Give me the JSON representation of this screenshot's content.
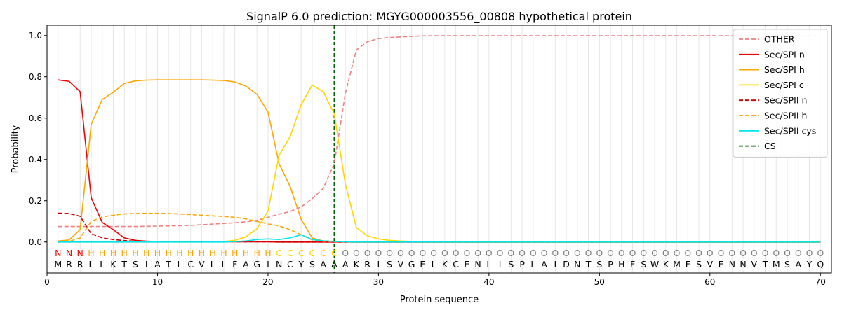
{
  "chart_data": {
    "type": "line",
    "title": "SignalP 6.0 prediction: MGYG000003556_00808 hypothetical protein",
    "xlabel": "Protein sequence",
    "ylabel": "Probability",
    "xlim": [
      0,
      71
    ],
    "ylim": [
      -0.15,
      1.05
    ],
    "x_ticks": [
      0,
      10,
      20,
      30,
      40,
      50,
      60,
      70
    ],
    "y_ticks": [
      0.0,
      0.2,
      0.4,
      0.6,
      0.8,
      1.0
    ],
    "legend_position": "top-right",
    "cs_position": 26,
    "sequence": "MRRLLKTSIATLCVLLFAGINCYSAAAKRISVGELKCENLISPLAIDNTSPHFSWKMFSVENNVTMSAYQ",
    "region_labels": "NNNHHHHHHHHHHHHHHHHHCCCCCCOOOOOOOOOOOOOOOOOOOOOOOOOOOOOOOOOOOOOOOOOOOO",
    "region_colors": {
      "N": "#ff0000",
      "H": "#ffa500",
      "C": "#ffd700",
      "O": "#808080"
    },
    "series": [
      {
        "name": "OTHER",
        "color": "#f08080",
        "dash": "dashed",
        "values": [
          0.075,
          0.075,
          0.075,
          0.075,
          0.075,
          0.075,
          0.075,
          0.075,
          0.076,
          0.077,
          0.078,
          0.079,
          0.081,
          0.084,
          0.087,
          0.09,
          0.093,
          0.098,
          0.105,
          0.12,
          0.135,
          0.148,
          0.17,
          0.21,
          0.26,
          0.38,
          0.72,
          0.93,
          0.97,
          0.985,
          0.99,
          0.993,
          0.996,
          0.998,
          0.999,
          0.999,
          0.999,
          0.999,
          0.999,
          0.999,
          0.999,
          0.999,
          0.999,
          0.999,
          0.999,
          0.999,
          0.999,
          0.999,
          0.999,
          0.999,
          0.999,
          0.999,
          0.999,
          0.999,
          0.999,
          0.999,
          0.999,
          0.999,
          0.999,
          0.999,
          0.999,
          0.998,
          0.998,
          0.998,
          0.998,
          0.998,
          0.998,
          0.998,
          0.998,
          0.998
        ]
      },
      {
        "name": "Sec/SPI n",
        "color": "#ee0000",
        "dash": "solid",
        "values": [
          0.785,
          0.778,
          0.728,
          0.215,
          0.095,
          0.06,
          0.02,
          0.008,
          0.004,
          0.002,
          0.001,
          0.001,
          0.001,
          0.001,
          0.001,
          0.001,
          0.001,
          0.001,
          0.001,
          0.001,
          0,
          0,
          0,
          0,
          0,
          0,
          0,
          0,
          0,
          0,
          0,
          0,
          0,
          0,
          0,
          0,
          0,
          0,
          0,
          0,
          0,
          0,
          0,
          0,
          0,
          0,
          0,
          0,
          0,
          0,
          0,
          0,
          0,
          0,
          0,
          0,
          0,
          0,
          0,
          0,
          0,
          0,
          0,
          0,
          0,
          0,
          0,
          0,
          0,
          0
        ]
      },
      {
        "name": "Sec/SPI h",
        "color": "#ffa500",
        "dash": "solid",
        "values": [
          0.005,
          0.01,
          0.06,
          0.57,
          0.69,
          0.725,
          0.768,
          0.78,
          0.784,
          0.785,
          0.785,
          0.785,
          0.785,
          0.785,
          0.784,
          0.782,
          0.775,
          0.755,
          0.715,
          0.63,
          0.38,
          0.27,
          0.11,
          0.02,
          0.005,
          0.002,
          0.001,
          0,
          0,
          0,
          0,
          0,
          0,
          0,
          0,
          0,
          0,
          0,
          0,
          0,
          0,
          0,
          0,
          0,
          0,
          0,
          0,
          0,
          0,
          0,
          0,
          0,
          0,
          0,
          0,
          0,
          0,
          0,
          0,
          0,
          0,
          0,
          0,
          0,
          0,
          0,
          0,
          0,
          0,
          0
        ]
      },
      {
        "name": "Sec/SPI c",
        "color": "#ffd700",
        "dash": "solid",
        "values": [
          0,
          0,
          0,
          0,
          0,
          0,
          0,
          0,
          0,
          0,
          0,
          0,
          0,
          0,
          0.001,
          0.003,
          0.008,
          0.025,
          0.065,
          0.15,
          0.42,
          0.51,
          0.665,
          0.76,
          0.728,
          0.62,
          0.28,
          0.07,
          0.03,
          0.015,
          0.008,
          0.005,
          0.003,
          0.002,
          0.001,
          0,
          0,
          0,
          0,
          0,
          0,
          0,
          0,
          0,
          0,
          0,
          0,
          0,
          0,
          0,
          0,
          0,
          0,
          0,
          0,
          0,
          0,
          0,
          0,
          0,
          0,
          0,
          0,
          0,
          0,
          0,
          0,
          0,
          0,
          0
        ]
      },
      {
        "name": "Sec/SPII n",
        "color": "#cc0000",
        "dash": "dashed",
        "values": [
          0.14,
          0.138,
          0.125,
          0.04,
          0.02,
          0.012,
          0.007,
          0.004,
          0.003,
          0.002,
          0.001,
          0.001,
          0.001,
          0.001,
          0.001,
          0.001,
          0.001,
          0.001,
          0.001,
          0.001,
          0,
          0,
          0,
          0,
          0,
          0,
          0,
          0,
          0,
          0,
          0,
          0,
          0,
          0,
          0,
          0,
          0,
          0,
          0,
          0,
          0,
          0,
          0,
          0,
          0,
          0,
          0,
          0,
          0,
          0,
          0,
          0,
          0,
          0,
          0,
          0,
          0,
          0,
          0,
          0,
          0,
          0,
          0,
          0,
          0,
          0,
          0,
          0,
          0,
          0
        ]
      },
      {
        "name": "Sec/SPII h",
        "color": "#ffa500",
        "dash": "dashed",
        "values": [
          0.001,
          0.003,
          0.02,
          0.1,
          0.122,
          0.13,
          0.136,
          0.138,
          0.139,
          0.139,
          0.138,
          0.136,
          0.133,
          0.13,
          0.127,
          0.124,
          0.12,
          0.112,
          0.1,
          0.088,
          0.078,
          0.06,
          0.035,
          0.01,
          0.004,
          0.002,
          0.001,
          0,
          0,
          0,
          0,
          0,
          0,
          0,
          0,
          0,
          0,
          0,
          0,
          0,
          0,
          0,
          0,
          0,
          0,
          0,
          0,
          0,
          0,
          0,
          0,
          0,
          0,
          0,
          0,
          0,
          0,
          0,
          0,
          0,
          0,
          0,
          0,
          0,
          0,
          0,
          0,
          0,
          0,
          0
        ]
      },
      {
        "name": "Sec/SPII cys",
        "color": "#00e5ee",
        "dash": "solid",
        "values": [
          0,
          0,
          0,
          0,
          0,
          0,
          0,
          0,
          0,
          0,
          0,
          0,
          0,
          0,
          0,
          0,
          0.002,
          0.005,
          0.012,
          0.015,
          0.012,
          0.02,
          0.035,
          0.012,
          0.006,
          0.003,
          0.001,
          0,
          0,
          0,
          0,
          0,
          0,
          0,
          0,
          0,
          0,
          0,
          0,
          0,
          0,
          0,
          0,
          0,
          0,
          0,
          0,
          0,
          0,
          0,
          0,
          0,
          0,
          0,
          0,
          0,
          0,
          0,
          0,
          0,
          0,
          0,
          0,
          0,
          0,
          0,
          0,
          0,
          0,
          0
        ]
      },
      {
        "name": "CS",
        "color": "#006400",
        "dash": "dashed",
        "values": []
      }
    ]
  }
}
